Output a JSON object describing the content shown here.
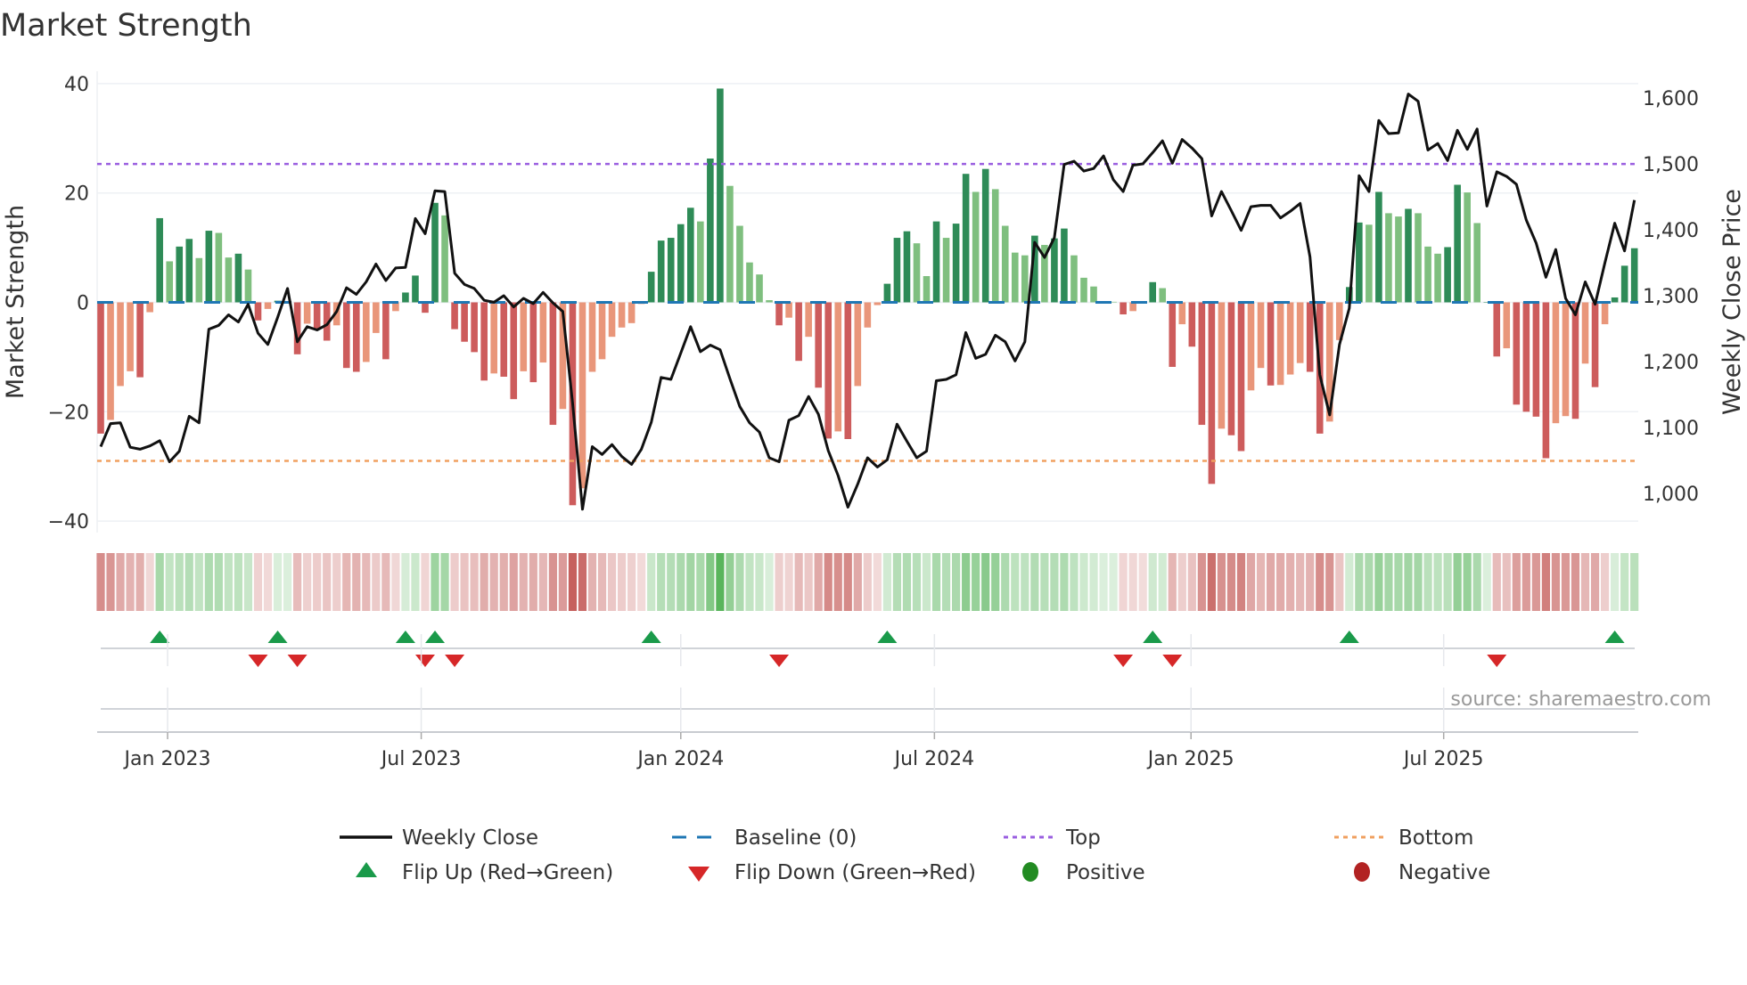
{
  "chart_data": {
    "type": "bar",
    "title": "Market Strength",
    "ylabel": "Market Strength",
    "ylabel_right": "Weekly Close Price",
    "ylim": [
      -40,
      40
    ],
    "ylim_right": [
      960,
      1620
    ],
    "y_ticks": [
      "40",
      "20",
      "0",
      "−20",
      "−40"
    ],
    "y_tick_values": [
      40,
      20,
      0,
      -20,
      -40
    ],
    "y_right_ticks": [
      "1,600",
      "1,500",
      "1,400",
      "1,300",
      "1,200",
      "1,100",
      "1,000"
    ],
    "y_right_tick_values": [
      1600,
      1500,
      1400,
      1300,
      1200,
      1100,
      1000
    ],
    "x_ticks": [
      {
        "label": "Jan 2023",
        "week": 6.8
      },
      {
        "label": "Jul 2023",
        "week": 32.6
      },
      {
        "label": "Jan 2024",
        "week": 59.0
      },
      {
        "label": "Jul 2024",
        "week": 84.8
      },
      {
        "label": "Jan 2025",
        "week": 110.9
      },
      {
        "label": "Jul 2025",
        "week": 136.6
      }
    ],
    "top_level": 25.3,
    "bottom_level": -29,
    "baseline": 0,
    "strength": [
      -24,
      -21.5,
      -15.3,
      -12.6,
      -13.7,
      -1.8,
      15.4,
      7.5,
      10.2,
      11.6,
      8.1,
      13.1,
      12.7,
      8.2,
      8.9,
      6,
      -3.3,
      -1.2,
      0.3,
      0.2,
      -9.5,
      -3.9,
      -4.8,
      -7,
      -4.2,
      -12,
      -12.7,
      -10.9,
      -5.6,
      -10.4,
      -1.6,
      1.8,
      4.9,
      -1.9,
      18.2,
      15.9,
      -4.9,
      -7.2,
      -9.1,
      -14.3,
      -13,
      -13.6,
      -17.7,
      -12.6,
      -14.6,
      -11,
      -22.4,
      -19.5,
      -37.1,
      -34,
      -12.7,
      -10.4,
      -6.3,
      -4.6,
      -3.8,
      -0.3,
      5.6,
      11.3,
      11.8,
      14.3,
      17.3,
      14.8,
      26.3,
      39.1,
      21.3,
      14,
      7.3,
      5.1,
      0.4,
      -4.2,
      -2.8,
      -10.7,
      -6.3,
      -15.6,
      -24.9,
      -23.6,
      -25,
      -15.3,
      -4.6,
      -0.5,
      3.4,
      11.8,
      13,
      10.8,
      4.8,
      14.8,
      11.8,
      14.4,
      23.5,
      20.2,
      24.4,
      20.7,
      14,
      9.1,
      8.6,
      12.2,
      10.5,
      11.7,
      13.5,
      8.6,
      4.5,
      2.9,
      0.2,
      0.1,
      -2.2,
      -1.6,
      -0.2,
      3.7,
      2.6,
      -11.8,
      -4,
      -8.1,
      -22.4,
      -33.2,
      -23.1,
      -24.3,
      -27.2,
      -16.1,
      -12,
      -15.2,
      -15.1,
      -13.2,
      -11.1,
      -12.7,
      -24,
      -21.8,
      -6.9,
      2.8,
      14.6,
      14.2,
      20.2,
      16.3,
      15.7,
      17.1,
      16.3,
      10.2,
      8.9,
      10.1,
      21.5,
      20.1,
      14.5,
      0,
      -9.9,
      -8.4,
      -18.7,
      -20,
      -20.9,
      -28.5,
      -22.1,
      -20.8,
      -21.3,
      -11.2,
      -15.5,
      -4,
      0.9,
      6.7,
      9.9
    ],
    "weekly_close": [
      1071,
      1106,
      1107,
      1070,
      1067,
      1072,
      1080,
      1048,
      1064,
      1117,
      1107,
      1249,
      1255,
      1271,
      1260,
      1287,
      1243,
      1226,
      1267,
      1311,
      1230,
      1253,
      1248,
      1256,
      1276,
      1312,
      1302,
      1321,
      1348,
      1323,
      1342,
      1343,
      1417,
      1394,
      1459,
      1458,
      1334,
      1317,
      1311,
      1293,
      1290,
      1300,
      1283,
      1296,
      1288,
      1305,
      1289,
      1276,
      1137,
      976,
      1071,
      1059,
      1074,
      1056,
      1044,
      1067,
      1108,
      1176,
      1173,
      1213,
      1253,
      1215,
      1225,
      1218,
      1174,
      1132,
      1107,
      1093,
      1054,
      1048,
      1111,
      1118,
      1147,
      1120,
      1065,
      1027,
      979,
      1014,
      1054,
      1040,
      1051,
      1105,
      1079,
      1054,
      1064,
      1171,
      1173,
      1180,
      1244,
      1205,
      1211,
      1240,
      1230,
      1201,
      1230,
      1381,
      1358,
      1388,
      1499,
      1504,
      1489,
      1493,
      1512,
      1476,
      1458,
      1498,
      1500,
      1517,
      1535,
      1501,
      1537,
      1524,
      1508,
      1421,
      1458,
      1429,
      1399,
      1435,
      1437,
      1437,
      1418,
      1428,
      1440,
      1359,
      1180,
      1119,
      1226,
      1281,
      1482,
      1458,
      1566,
      1546,
      1547,
      1606,
      1595,
      1521,
      1531,
      1505,
      1551,
      1522,
      1553,
      1436,
      1488,
      1481,
      1469,
      1415,
      1380,
      1328,
      1370,
      1296,
      1271,
      1321,
      1287,
      1350,
      1410,
      1368,
      1445
    ],
    "flip_up_weeks": [
      7,
      19,
      32,
      35,
      57,
      81,
      108,
      128,
      155
    ],
    "flip_down_weeks": [
      17,
      21,
      34,
      37,
      70,
      105,
      110,
      143
    ],
    "colors": {
      "pos_strong": "#2e8b57",
      "pos_weak": "#7fbf7f",
      "neg_strong": "#cd5c5c",
      "neg_weak": "#e9967a",
      "strip_pos": "#4caf50",
      "strip_neg": "#c0504d",
      "price": "#111111",
      "baseline": "#1f77b4",
      "top": "#9a5fe0",
      "bottom": "#f0a060",
      "flip_up": "#1a9a4a",
      "flip_down": "#d62728",
      "positive": "#228b22",
      "negative": "#b22222"
    },
    "legend": {
      "weekly_close": "Weekly Close",
      "baseline": "Baseline (0)",
      "top": "Top",
      "bottom": "Bottom",
      "flip_up": "Flip Up (Red→Green)",
      "flip_down": "Flip Down (Green→Red)",
      "positive": "Positive",
      "negative": "Negative"
    },
    "legend_placement": "bottom",
    "grid": true
  },
  "source": "source: sharemaestro.com"
}
